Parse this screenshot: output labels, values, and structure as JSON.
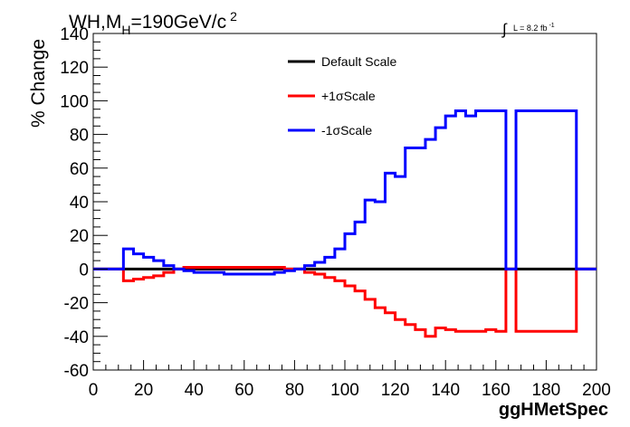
{
  "chart_data": {
    "type": "line",
    "step": true,
    "title": "WH,M_H=190GeV/c^2",
    "title_parts": {
      "main": "WH,M",
      "sub": "H",
      "rest": "=190GeV/c",
      "sup": "2"
    },
    "lumi_parts": {
      "integral": "∫",
      "text": "L = 8.2 fb",
      "sup": "-1"
    },
    "xlabel": "ggHMetSpec",
    "ylabel": "% Change",
    "xlim": [
      0,
      200
    ],
    "ylim": [
      -60,
      140
    ],
    "xticks": [
      0,
      20,
      40,
      60,
      80,
      100,
      120,
      140,
      160,
      180,
      200
    ],
    "yticks": [
      -60,
      -40,
      -20,
      0,
      20,
      40,
      60,
      80,
      100,
      120,
      140
    ],
    "grid": false,
    "legend_position": "top-center",
    "bin_edges": [
      0,
      4,
      8,
      12,
      16,
      20,
      24,
      28,
      32,
      36,
      40,
      44,
      48,
      52,
      56,
      60,
      64,
      68,
      72,
      76,
      80,
      84,
      88,
      92,
      96,
      100,
      104,
      108,
      112,
      116,
      120,
      124,
      128,
      132,
      136,
      140,
      144,
      148,
      152,
      156,
      160,
      164,
      168,
      172,
      176,
      180,
      184,
      188,
      192,
      196,
      200
    ],
    "series": [
      {
        "name": "Default Scale",
        "color": "#000000",
        "values": [
          0,
          0,
          0,
          0,
          0,
          0,
          0,
          0,
          0,
          0,
          0,
          0,
          0,
          0,
          0,
          0,
          0,
          0,
          0,
          0,
          0,
          0,
          0,
          0,
          0,
          0,
          0,
          0,
          0,
          0,
          0,
          0,
          0,
          0,
          0,
          0,
          0,
          0,
          0,
          0,
          0,
          0,
          0,
          0,
          0,
          0,
          0,
          0,
          0,
          0
        ]
      },
      {
        "name": "+1σScale",
        "color": "#ff0000",
        "values": [
          0,
          0,
          0,
          -7,
          -6,
          -5,
          -4,
          -2,
          0,
          1,
          1,
          1,
          1,
          1,
          1,
          1,
          1,
          1,
          1,
          0,
          0,
          -2,
          -3,
          -5,
          -7,
          -10,
          -13,
          -18,
          -23,
          -26,
          -30,
          -33,
          -36,
          -40,
          -35,
          -36,
          -37,
          -37,
          -37,
          -36,
          -37,
          0,
          -37,
          -37,
          -37,
          -37,
          -37,
          -37,
          0,
          0
        ]
      },
      {
        "name": "-1σScale",
        "color": "#0000ff",
        "values": [
          0,
          0,
          0,
          12,
          9,
          7,
          5,
          2,
          0,
          -1,
          -2,
          -2,
          -2,
          -3,
          -3,
          -3,
          -3,
          -3,
          -2,
          -1,
          0,
          2,
          4,
          7,
          12,
          21,
          28,
          41,
          40,
          57,
          55,
          72,
          72,
          77,
          84,
          91,
          94,
          91,
          94,
          94,
          94,
          0,
          94,
          94,
          94,
          94,
          94,
          94,
          0,
          0
        ]
      }
    ]
  }
}
